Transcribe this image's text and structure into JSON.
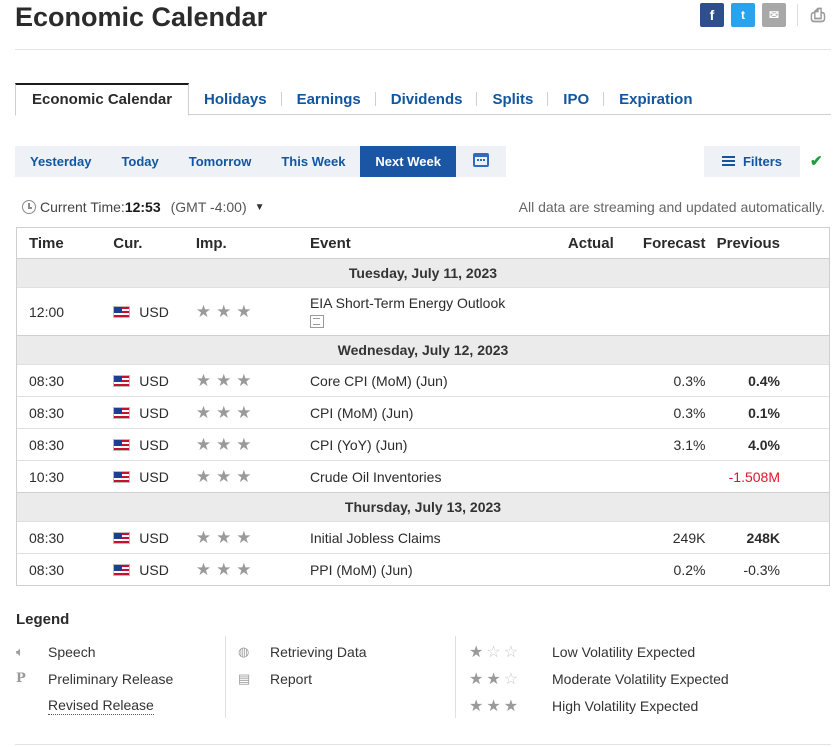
{
  "header": {
    "title": "Economic Calendar"
  },
  "share": {
    "facebook": "f",
    "twitter": "t",
    "email": "✉",
    "print": "⎙"
  },
  "tabs": [
    {
      "label": "Economic Calendar",
      "active": true
    },
    {
      "label": "Holidays"
    },
    {
      "label": "Earnings"
    },
    {
      "label": "Dividends"
    },
    {
      "label": "Splits"
    },
    {
      "label": "IPO"
    },
    {
      "label": "Expiration"
    }
  ],
  "day_filters": [
    {
      "label": "Yesterday"
    },
    {
      "label": "Today"
    },
    {
      "label": "Tomorrow"
    },
    {
      "label": "This Week"
    },
    {
      "label": "Next Week",
      "active": true
    }
  ],
  "filters_label": "Filters",
  "time": {
    "label": "Current Time:",
    "value": "12:53",
    "tz": "(GMT -4:00)"
  },
  "streaming_note": "All data are streaming and updated automatically.",
  "table": {
    "headers": {
      "time": "Time",
      "cur": "Cur.",
      "imp": "Imp.",
      "event": "Event",
      "actual": "Actual",
      "forecast": "Forecast",
      "previous": "Previous"
    },
    "groups": [
      {
        "date": "Tuesday, July 11, 2023",
        "rows": [
          {
            "time": "12:00",
            "cur": "USD",
            "event": "EIA Short-Term Energy Outlook",
            "actual": "",
            "forecast": "",
            "previous": "",
            "report": true
          }
        ]
      },
      {
        "date": "Wednesday, July 12, 2023",
        "rows": [
          {
            "time": "08:30",
            "cur": "USD",
            "event": "Core CPI (MoM) (Jun)",
            "actual": "",
            "forecast": "0.3%",
            "previous": "0.4%"
          },
          {
            "time": "08:30",
            "cur": "USD",
            "event": "CPI (MoM) (Jun)",
            "actual": "",
            "forecast": "0.3%",
            "previous": "0.1%"
          },
          {
            "time": "08:30",
            "cur": "USD",
            "event": "CPI (YoY) (Jun)",
            "actual": "",
            "forecast": "3.1%",
            "previous": "4.0%"
          },
          {
            "time": "10:30",
            "cur": "USD",
            "event": "Crude Oil Inventories",
            "actual": "",
            "forecast": "",
            "previous": "-1.508M",
            "previous_color": "#e0162b"
          }
        ]
      },
      {
        "date": "Thursday, July 13, 2023",
        "rows": [
          {
            "time": "08:30",
            "cur": "USD",
            "event": "Initial Jobless Claims",
            "actual": "",
            "forecast": "249K",
            "previous": "248K"
          },
          {
            "time": "08:30",
            "cur": "USD",
            "event": "PPI (MoM) (Jun)",
            "actual": "",
            "forecast": "0.2%",
            "previous": "-0.3%"
          }
        ]
      }
    ]
  },
  "legend": {
    "title": "Legend",
    "col1": [
      {
        "icon": "speaker-icon",
        "label": "Speech"
      },
      {
        "icon": "preliminary-icon",
        "label": "Preliminary Release"
      },
      {
        "icon": "",
        "label": "Revised Release"
      }
    ],
    "col2": [
      {
        "icon": "retrieving-icon",
        "label": "Retrieving Data"
      },
      {
        "icon": "report-icon",
        "label": "Report"
      }
    ],
    "col3": [
      {
        "stars": 1,
        "label": "Low Volatility Expected"
      },
      {
        "stars": 2,
        "label": "Moderate Volatility Expected"
      },
      {
        "stars": 3,
        "label": "High Volatility Expected"
      }
    ]
  },
  "colors": {
    "accent": "#1256a0",
    "active_tab": "#1a56a3",
    "negative": "#e0162b",
    "positive": "#1e9e3e"
  }
}
